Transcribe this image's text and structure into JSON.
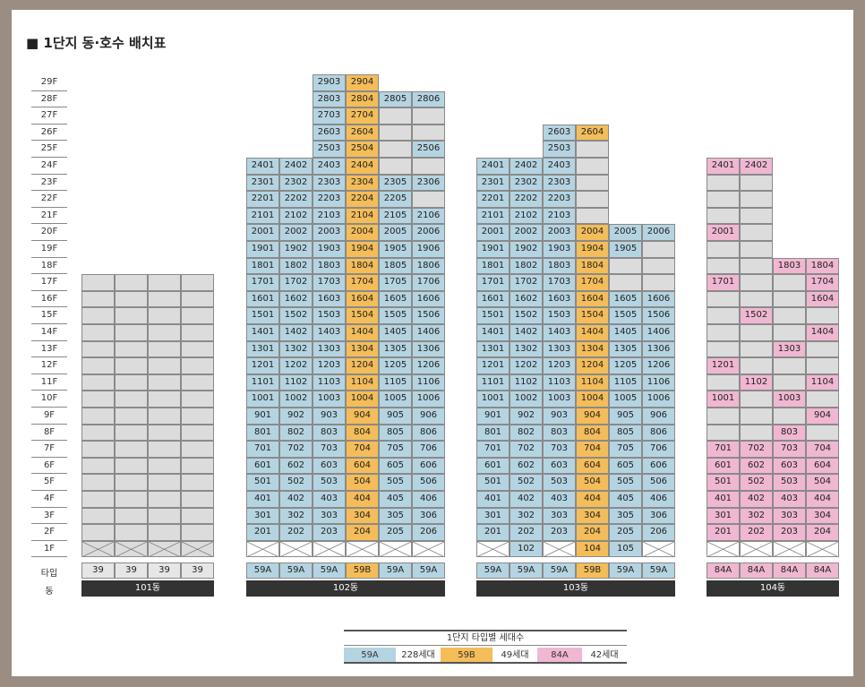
{
  "title": "■ 1단지 동·호수 배치표",
  "floors": [
    "29F",
    "28F",
    "27F",
    "26F",
    "25F",
    "24F",
    "23F",
    "22F",
    "21F",
    "20F",
    "19F",
    "18F",
    "17F",
    "16F",
    "15F",
    "14F",
    "13F",
    "12F",
    "11F",
    "10F",
    "9F",
    "8F",
    "7F",
    "6F",
    "5F",
    "4F",
    "3F",
    "2F",
    "1F"
  ],
  "row_labels": {
    "type": "타입",
    "building": "동"
  },
  "colors": {
    "A59": "#b5d4e2",
    "B59": "#f4bd59",
    "A84": "#f0b7d2",
    "gray": "#dcdcdc",
    "frame": "#9c8d82"
  },
  "buildings": [
    {
      "name": "101동",
      "types": [
        "39",
        "39",
        "39",
        "39"
      ],
      "max_floor": 17,
      "columns": [
        {
          "type": "gray",
          "units": {}
        },
        {
          "type": "gray",
          "units": {}
        },
        {
          "type": "gray",
          "units": {}
        },
        {
          "type": "gray",
          "units": {}
        }
      ]
    },
    {
      "name": "102동",
      "types": [
        "59A",
        "59A",
        "59A",
        "59B",
        "59A",
        "59A"
      ],
      "max_floor": 29,
      "columns": [
        {
          "type": "A59",
          "top": 24,
          "pilotis": true
        },
        {
          "type": "A59",
          "top": 24,
          "pilotis": true
        },
        {
          "type": "A59",
          "top": 29,
          "pilotis": true
        },
        {
          "type": "B59",
          "top": 29,
          "pilotis": true
        },
        {
          "type": "A59",
          "top": 23,
          "extra": [
            28
          ],
          "blanks": [
            27,
            26,
            25,
            24,
            22
          ],
          "pilotis": true
        },
        {
          "type": "A59",
          "top": 23,
          "extra": [
            28,
            25
          ],
          "blanks": [
            27,
            26,
            24,
            22
          ],
          "pilotis": true
        }
      ]
    },
    {
      "name": "103동",
      "types": [
        "59A",
        "59A",
        "59A",
        "59B",
        "59A",
        "59A"
      ],
      "max_floor": 26,
      "columns": [
        {
          "type": "A59",
          "top": 24,
          "pilotis": true
        },
        {
          "type": "A59",
          "top": 24,
          "pilotis": false,
          "ground": "102"
        },
        {
          "type": "A59",
          "top": 26,
          "pilotis": true
        },
        {
          "type": "B59",
          "top": 26,
          "pilotis": false,
          "ground": "104",
          "blanks": [
            25,
            24,
            23,
            22,
            21
          ]
        },
        {
          "type": "A59",
          "top": 20,
          "pilotis": false,
          "ground": "105",
          "blanks": [
            18,
            17
          ]
        },
        {
          "type": "A59",
          "top": 20,
          "pilotis": true,
          "blanks": [
            19,
            18,
            17
          ]
        }
      ]
    },
    {
      "name": "104동",
      "types": [
        "84A",
        "84A",
        "84A",
        "84A"
      ],
      "max_floor": 24
    },
    {
      "dummy": true
    }
  ],
  "b104": {
    "col1": {
      "top": 24,
      "pink": [
        24,
        20,
        17,
        12,
        10,
        7,
        6,
        5,
        4,
        3,
        2
      ]
    },
    "col2": {
      "top": 24,
      "pink": [
        24,
        15,
        11,
        7,
        6,
        5,
        4,
        3,
        2
      ]
    },
    "col3": {
      "top": 18,
      "pink": [
        18,
        13,
        10,
        8,
        7,
        6,
        5,
        4,
        3,
        2
      ]
    },
    "col4": {
      "top": 18,
      "pink": [
        18,
        17,
        16,
        14,
        11,
        9,
        7,
        6,
        5,
        4,
        3,
        2
      ]
    }
  },
  "legend": {
    "title": "1단지 타입별 세대수",
    "items": [
      {
        "type": "59A",
        "count": "228세대"
      },
      {
        "type": "59B",
        "count": "49세대"
      },
      {
        "type": "84A",
        "count": "42세대"
      }
    ]
  }
}
